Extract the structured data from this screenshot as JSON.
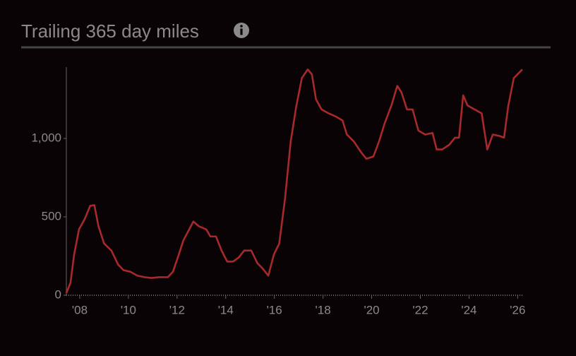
{
  "chart_data": {
    "type": "line",
    "title": "Trailing 365 day miles",
    "x": [
      2007.45,
      2007.62,
      2007.77,
      2007.97,
      2008.2,
      2008.43,
      2008.6,
      2008.77,
      2009.0,
      2009.3,
      2009.58,
      2009.8,
      2010.08,
      2010.37,
      2010.67,
      2010.95,
      2011.25,
      2011.62,
      2011.83,
      2012.03,
      2012.26,
      2012.5,
      2012.67,
      2012.9,
      2013.2,
      2013.37,
      2013.6,
      2013.83,
      2014.06,
      2014.3,
      2014.53,
      2014.76,
      2015.05,
      2015.3,
      2015.52,
      2015.75,
      2015.98,
      2016.2,
      2016.44,
      2016.67,
      2016.9,
      2017.13,
      2017.37,
      2017.54,
      2017.71,
      2017.94,
      2018.23,
      2018.52,
      2018.8,
      2018.98,
      2019.27,
      2019.55,
      2019.78,
      2020.07,
      2020.3,
      2020.53,
      2020.82,
      2021.05,
      2021.22,
      2021.45,
      2021.68,
      2021.92,
      2022.2,
      2022.5,
      2022.67,
      2022.9,
      2023.19,
      2023.42,
      2023.59,
      2023.76,
      2023.94,
      2024.23,
      2024.52,
      2024.75,
      2024.98,
      2025.27,
      2025.44,
      2025.61,
      2025.84,
      2026.19
    ],
    "series": [
      {
        "color": "#a8292b",
        "values": [
          14,
          80,
          260,
          420,
          485,
          570,
          575,
          440,
          330,
          285,
          195,
          160,
          150,
          125,
          115,
          110,
          115,
          115,
          150,
          240,
          350,
          420,
          470,
          440,
          420,
          375,
          375,
          285,
          215,
          215,
          240,
          285,
          285,
          205,
          170,
          125,
          260,
          330,
          620,
          980,
          1205,
          1385,
          1440,
          1410,
          1250,
          1185,
          1160,
          1140,
          1115,
          1025,
          980,
          915,
          870,
          885,
          980,
          1095,
          1215,
          1335,
          1295,
          1185,
          1185,
          1050,
          1025,
          1035,
          930,
          930,
          960,
          1005,
          1005,
          1275,
          1210,
          1185,
          1160,
          930,
          1025,
          1015,
          1005,
          1205,
          1385,
          1440
        ]
      }
    ],
    "xlim": [
      2007.45,
      2026.25
    ],
    "xticks": [
      {
        "value": 2008,
        "label": "'08"
      },
      {
        "value": 2010,
        "label": "'10"
      },
      {
        "value": 2012,
        "label": "'12"
      },
      {
        "value": 2014,
        "label": "'14"
      },
      {
        "value": 2016,
        "label": "'16"
      },
      {
        "value": 2018,
        "label": "'18"
      },
      {
        "value": 2020,
        "label": "'20"
      },
      {
        "value": 2022,
        "label": "'22"
      },
      {
        "value": 2024,
        "label": "'24"
      },
      {
        "value": 2026,
        "label": "'26"
      }
    ],
    "ylim": [
      0,
      1455
    ],
    "yticks": [
      0,
      500,
      {
        "value": 1000,
        "label": "1,000"
      }
    ]
  }
}
